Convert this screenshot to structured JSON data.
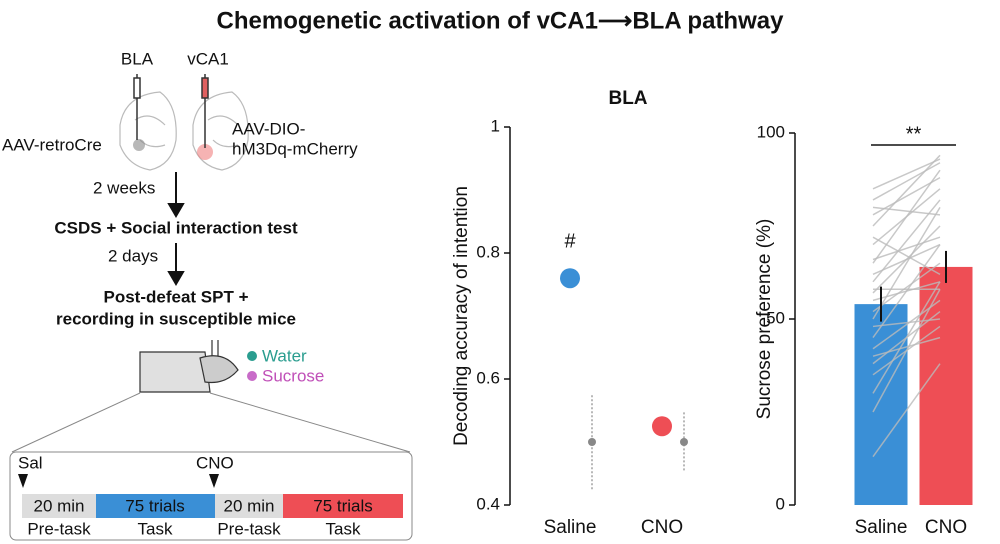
{
  "title": "Chemogenetic activation of vCA1⟶BLA pathway",
  "diagram": {
    "injection_sites": [
      "BLA",
      "vCA1"
    ],
    "viruses": [
      "AAV-retroCre",
      "AAV-DIO-",
      "hM3Dq-mCherry"
    ],
    "steps": [
      "2 weeks",
      "CSDS + Social interaction test",
      "2 days",
      "Post-defeat SPT +",
      "recording in susceptible mice"
    ],
    "bottles": [
      "Water",
      "Sucrose"
    ],
    "timeline": {
      "injections": [
        "Sal",
        "CNO"
      ],
      "blocks": [
        "20 min",
        "75 trials",
        "20 min",
        "75 trials"
      ],
      "phases": [
        "Pre-task",
        "Task",
        "Pre-task",
        "Task"
      ]
    }
  },
  "chart_data": [
    {
      "type": "dot",
      "title": "BLA",
      "y_label": "Decoding accuracy of intention",
      "categories": [
        "Saline",
        "CNO"
      ],
      "values": [
        0.76,
        0.525
      ],
      "colors": [
        "#3a8fd6",
        "#ee4e55"
      ],
      "shuffle": {
        "values": [
          0.5,
          0.5
        ],
        "low": [
          0.425,
          0.455
        ],
        "high": [
          0.575,
          0.55
        ],
        "color": "#888888"
      },
      "annotation": "#",
      "ylim": [
        0.4,
        1
      ],
      "yticks": [
        0.4,
        0.6,
        0.8,
        1
      ]
    },
    {
      "type": "bar",
      "y_label": "Sucrose preference (%)",
      "categories": [
        "Saline",
        "CNO"
      ],
      "values": [
        54,
        64
      ],
      "errors": [
        4.7,
        4.3
      ],
      "colors": [
        "#3a8fd6",
        "#ee4e55"
      ],
      "pairs": {
        "saline": [
          13,
          30,
          38,
          42,
          45,
          48,
          50,
          52,
          55,
          57,
          60,
          62,
          65,
          70,
          72,
          75,
          78,
          80,
          82,
          85,
          40,
          35,
          58,
          66,
          25
        ],
        "cno": [
          38,
          60,
          52,
          55,
          70,
          50,
          80,
          65,
          60,
          75,
          82,
          70,
          90,
          85,
          62,
          94,
          88,
          78,
          92,
          93,
          45,
          48,
          58,
          72,
          58
        ]
      },
      "annotation": "**",
      "ylim": [
        0,
        100
      ],
      "yticks": [
        0,
        50,
        100
      ]
    }
  ]
}
